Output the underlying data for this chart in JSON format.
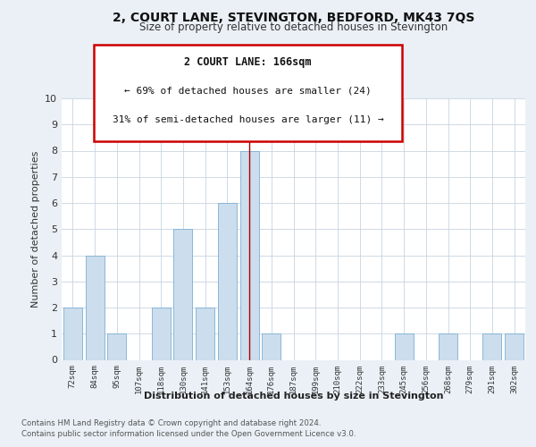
{
  "title": "2, COURT LANE, STEVINGTON, BEDFORD, MK43 7QS",
  "subtitle": "Size of property relative to detached houses in Stevington",
  "xlabel": "Distribution of detached houses by size in Stevington",
  "ylabel": "Number of detached properties",
  "categories": [
    "72sqm",
    "84sqm",
    "95sqm",
    "107sqm",
    "118sqm",
    "130sqm",
    "141sqm",
    "153sqm",
    "164sqm",
    "176sqm",
    "187sqm",
    "199sqm",
    "210sqm",
    "222sqm",
    "233sqm",
    "245sqm",
    "256sqm",
    "268sqm",
    "279sqm",
    "291sqm",
    "302sqm"
  ],
  "values": [
    2,
    4,
    1,
    0,
    2,
    5,
    2,
    6,
    8,
    1,
    0,
    0,
    0,
    0,
    0,
    1,
    0,
    1,
    0,
    1,
    1
  ],
  "bar_color": "#ccdded",
  "bar_edge_color": "#7bafd4",
  "highlight_index": 8,
  "highlight_line_color": "#aa0000",
  "annotation_title": "2 COURT LANE: 166sqm",
  "annotation_line1": "← 69% of detached houses are smaller (24)",
  "annotation_line2": "31% of semi-detached houses are larger (11) →",
  "annotation_box_color": "#ffffff",
  "annotation_box_edgecolor": "#cc0000",
  "ylim": [
    0,
    10
  ],
  "yticks": [
    0,
    1,
    2,
    3,
    4,
    5,
    6,
    7,
    8,
    9,
    10
  ],
  "footer_line1": "Contains HM Land Registry data © Crown copyright and database right 2024.",
  "footer_line2": "Contains public sector information licensed under the Open Government Licence v3.0.",
  "bg_color": "#eaf0f6",
  "plot_bg_color": "#ffffff",
  "grid_color": "#c8d4e0"
}
